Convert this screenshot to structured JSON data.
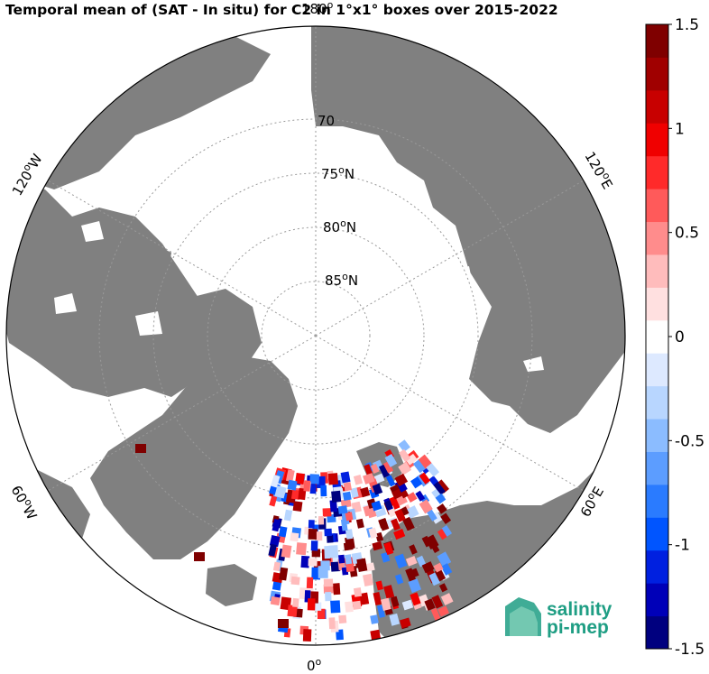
{
  "title": "Temporal mean of (SAT - In situ) for C2 in 1°x1° boxes over 2015-2022",
  "map": {
    "projection": "north polar stereographic",
    "lat_labels": [
      {
        "text": "70",
        "sup": "",
        "suffix": ""
      },
      {
        "text": "75",
        "sup": "o",
        "suffix": "N"
      },
      {
        "text": "80",
        "sup": "o",
        "suffix": "N"
      },
      {
        "text": "85",
        "sup": "o",
        "suffix": "N"
      }
    ],
    "lon_labels": [
      {
        "id": "lon-180",
        "text": "180",
        "sup": "o",
        "suffix": ""
      },
      {
        "id": "lon-120w",
        "text": "120",
        "sup": "o",
        "suffix": "W"
      },
      {
        "id": "lon-120e",
        "text": "120",
        "sup": "o",
        "suffix": "E"
      },
      {
        "id": "lon-60w",
        "text": "60",
        "sup": "o",
        "suffix": "W"
      },
      {
        "id": "lon-60e",
        "text": "60",
        "sup": "o",
        "suffix": "E"
      },
      {
        "id": "lon-0",
        "text": "0",
        "sup": "o",
        "suffix": ""
      }
    ],
    "colors": {
      "land": "#808080",
      "ocean": "#ffffff",
      "grid": "#9a9a9a"
    }
  },
  "colorbar": {
    "min": -1.5,
    "max": 1.5,
    "ticks": [
      "1.5",
      "1",
      "0.5",
      "0",
      "-0.5",
      "-1",
      "-1.5"
    ],
    "colors": [
      "#00007f",
      "#0000b8",
      "#0020e0",
      "#0055ff",
      "#2a7bff",
      "#5c9dff",
      "#8bbcff",
      "#b8d6ff",
      "#dde9ff",
      "#ffffff",
      "#ffe0e0",
      "#ffbcbc",
      "#ff8c8c",
      "#ff5a5a",
      "#ff2a2a",
      "#f00000",
      "#c80000",
      "#a00000",
      "#7f0000"
    ]
  },
  "logo": {
    "line1": "salinity",
    "line2": "pi-mep",
    "color": "#1f9e84"
  }
}
